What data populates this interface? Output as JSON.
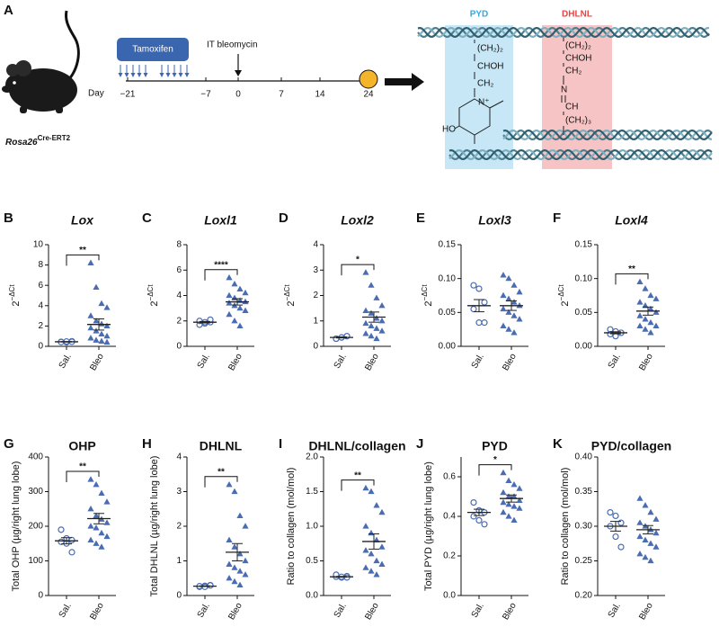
{
  "diagram": {
    "panel": "A",
    "mouse_label": "Rosa26",
    "mouse_label_superscript": "Cre-ERT2",
    "treatment": "Tamoxifen",
    "injection": "IT bleomycin",
    "timeline_label": "Day",
    "timeline_days": [
      "−21",
      "−7",
      "0",
      "7",
      "14",
      "24"
    ],
    "pyd_label": "PYD",
    "dhlnl_label": "DHLNL",
    "pyd_groups": [
      "(CH₂)₂",
      "CHOH",
      "CH₂"
    ],
    "pyd_ring_n": "N⁺",
    "pyd_hydroxyl": "HO",
    "dhlnl_groups": [
      "(CH₂)₂",
      "CHOH",
      "CH₂",
      "N",
      "CH",
      "(CH₂)₃"
    ]
  },
  "chart_data": [
    {
      "type": "dot",
      "panel": "B",
      "title": "Lox",
      "ylabel": "2",
      "ylabel_superscript": "−ΔCt",
      "categories": [
        "Sal.",
        "Bleo"
      ],
      "color": "#4a6cb3",
      "groups": [
        {
          "marker": "open-circle",
          "values": [
            0.45,
            0.4,
            0.5,
            0.42,
            0.48,
            0.45
          ],
          "mean": 0.45,
          "sem": 0.02
        },
        {
          "marker": "triangle",
          "values": [
            8.2,
            5.8,
            4.2,
            3.8,
            3.0,
            2.5,
            2.2,
            2.0,
            1.8,
            1.5,
            1.2,
            1.0,
            0.8,
            0.6,
            0.5,
            0.4
          ],
          "mean": 2.15,
          "sem": 0.55
        }
      ],
      "ylim": [
        0,
        10
      ],
      "yticks": [
        0,
        2,
        4,
        6,
        8,
        10
      ],
      "significance": "**"
    },
    {
      "type": "dot",
      "panel": "C",
      "title": "Loxl1",
      "ylabel": "2",
      "ylabel_superscript": "−ΔCt",
      "categories": [
        "Sal.",
        "Bleo"
      ],
      "color": "#4a6cb3",
      "groups": [
        {
          "marker": "open-circle",
          "values": [
            1.7,
            1.8,
            1.9,
            2.0,
            1.9,
            2.1
          ],
          "mean": 1.9,
          "sem": 0.06
        },
        {
          "marker": "triangle",
          "values": [
            5.4,
            4.9,
            4.5,
            4.2,
            4.0,
            3.8,
            3.6,
            3.5,
            3.4,
            3.2,
            3.0,
            2.8,
            2.5,
            2.0,
            1.6
          ],
          "mean": 3.5,
          "sem": 0.25
        }
      ],
      "ylim": [
        0,
        8
      ],
      "yticks": [
        0,
        2,
        4,
        6,
        8
      ],
      "significance": "****"
    },
    {
      "type": "dot",
      "panel": "D",
      "title": "Loxl2",
      "ylabel": "2",
      "ylabel_superscript": "−ΔCt",
      "categories": [
        "Sal.",
        "Bleo"
      ],
      "color": "#4a6cb3",
      "groups": [
        {
          "marker": "open-circle",
          "values": [
            0.3,
            0.35,
            0.4,
            0.3,
            0.35,
            0.4
          ],
          "mean": 0.35,
          "sem": 0.02
        },
        {
          "marker": "triangle",
          "values": [
            2.9,
            2.4,
            1.9,
            1.6,
            1.4,
            1.3,
            1.1,
            1.0,
            0.9,
            0.8,
            0.7,
            0.6,
            0.5,
            0.4,
            0.3
          ],
          "mean": 1.15,
          "sem": 0.2
        }
      ],
      "ylim": [
        0,
        4
      ],
      "yticks": [
        0,
        1,
        2,
        3,
        4
      ],
      "significance": "*"
    },
    {
      "type": "dot",
      "panel": "E",
      "title": "Loxl3",
      "ylabel": "2",
      "ylabel_superscript": "−ΔCt",
      "categories": [
        "Sal.",
        "Bleo"
      ],
      "color": "#4a6cb3",
      "groups": [
        {
          "marker": "open-circle",
          "values": [
            0.09,
            0.085,
            0.065,
            0.055,
            0.035,
            0.035
          ],
          "mean": 0.06,
          "sem": 0.009
        },
        {
          "marker": "triangle",
          "values": [
            0.105,
            0.1,
            0.09,
            0.08,
            0.075,
            0.07,
            0.065,
            0.06,
            0.055,
            0.05,
            0.045,
            0.04,
            0.03,
            0.025,
            0.02
          ],
          "mean": 0.06,
          "sem": 0.007
        }
      ],
      "ylim": [
        0,
        0.15
      ],
      "yticks": [
        {
          "value": 0,
          "label": "0.00"
        },
        {
          "value": 0.05,
          "label": "0.05"
        },
        {
          "value": 0.1,
          "label": "0.10"
        },
        {
          "value": 0.15,
          "label": "0.15"
        }
      ]
    },
    {
      "type": "dot",
      "panel": "F",
      "title": "Loxl4",
      "ylabel": "2",
      "ylabel_superscript": "−ΔCt",
      "categories": [
        "Sal.",
        "Bleo"
      ],
      "color": "#4a6cb3",
      "groups": [
        {
          "marker": "open-circle",
          "values": [
            0.025,
            0.022,
            0.02,
            0.018,
            0.015,
            0.02
          ],
          "mean": 0.02,
          "sem": 0.0015
        },
        {
          "marker": "triangle",
          "values": [
            0.095,
            0.085,
            0.075,
            0.07,
            0.065,
            0.06,
            0.055,
            0.05,
            0.045,
            0.04,
            0.035,
            0.03,
            0.03,
            0.025,
            0.02
          ],
          "mean": 0.052,
          "sem": 0.006
        }
      ],
      "ylim": [
        0,
        0.15
      ],
      "yticks": [
        {
          "value": 0,
          "label": "0.00"
        },
        {
          "value": 0.05,
          "label": "0.05"
        },
        {
          "value": 0.1,
          "label": "0.10"
        },
        {
          "value": 0.15,
          "label": "0.15"
        }
      ],
      "significance": "**"
    },
    {
      "type": "dot",
      "panel": "G",
      "title": "OHP",
      "ylabel": "Total OHP (µg/right lung lobe)",
      "categories": [
        "Sal.",
        "Bleo"
      ],
      "color": "#4a6cb3",
      "groups": [
        {
          "marker": "open-circle",
          "values": [
            190,
            165,
            160,
            155,
            150,
            125
          ],
          "mean": 158,
          "sem": 9
        },
        {
          "marker": "triangle",
          "values": [
            335,
            320,
            295,
            270,
            250,
            230,
            220,
            210,
            200,
            195,
            180,
            170,
            160,
            150,
            140
          ],
          "mean": 222,
          "sem": 15
        }
      ],
      "ylim": [
        0,
        400
      ],
      "yticks": [
        0,
        100,
        200,
        300,
        400
      ],
      "significance": "**"
    },
    {
      "type": "dot",
      "panel": "H",
      "title": "DHLNL",
      "ylabel": "Total DHLNL (µg/right lung lobe)",
      "categories": [
        "Sal.",
        "Bleo"
      ],
      "color": "#4a6cb3",
      "groups": [
        {
          "marker": "open-circle",
          "values": [
            0.25,
            0.28,
            0.3,
            0.27,
            0.25,
            0.29
          ],
          "mean": 0.27,
          "sem": 0.01
        },
        {
          "marker": "triangle",
          "values": [
            3.2,
            3.0,
            2.3,
            2.0,
            1.6,
            1.4,
            1.2,
            1.0,
            0.9,
            0.8,
            0.7,
            0.6,
            0.5,
            0.4,
            0.3
          ],
          "mean": 1.25,
          "sem": 0.25
        }
      ],
      "ylim": [
        0,
        4
      ],
      "yticks": [
        0,
        1,
        2,
        3,
        4
      ],
      "significance": "**"
    },
    {
      "type": "dot",
      "panel": "I",
      "title": "DHLNL/collagen",
      "ylabel": "Ratio to collagen (mol/mol)",
      "categories": [
        "Sal.",
        "Bleo"
      ],
      "color": "#4a6cb3",
      "groups": [
        {
          "marker": "open-circle",
          "values": [
            0.27,
            0.26,
            0.28,
            0.3,
            0.27,
            0.26
          ],
          "mean": 0.27,
          "sem": 0.006
        },
        {
          "marker": "triangle",
          "values": [
            1.55,
            1.5,
            1.3,
            1.2,
            1.0,
            0.9,
            0.8,
            0.7,
            0.65,
            0.6,
            0.5,
            0.45,
            0.4,
            0.35,
            0.3
          ],
          "mean": 0.78,
          "sem": 0.11
        }
      ],
      "ylim": [
        0,
        2
      ],
      "yticks": [
        {
          "value": 0,
          "label": "0.0"
        },
        0.5,
        {
          "value": 1,
          "label": "1.0"
        },
        1.5,
        {
          "value": 2,
          "label": "2.0"
        }
      ],
      "significance": "**"
    },
    {
      "type": "dot",
      "panel": "J",
      "title": "PYD",
      "ylabel": "Total PYD (µg/right lung lobe)",
      "categories": [
        "Sal.",
        "Bleo"
      ],
      "color": "#4a6cb3",
      "groups": [
        {
          "marker": "open-circle",
          "values": [
            0.47,
            0.43,
            0.42,
            0.4,
            0.38,
            0.36
          ],
          "mean": 0.42,
          "sem": 0.016
        },
        {
          "marker": "triangle",
          "values": [
            0.62,
            0.58,
            0.56,
            0.54,
            0.52,
            0.5,
            0.5,
            0.48,
            0.47,
            0.46,
            0.45,
            0.44,
            0.42,
            0.4,
            0.38
          ],
          "mean": 0.49,
          "sem": 0.018
        }
      ],
      "ylim": [
        0,
        0.7
      ],
      "yticks": [
        {
          "value": 0,
          "label": "0.0"
        },
        0.2,
        0.4,
        0.6
      ],
      "significance": "*"
    },
    {
      "type": "dot",
      "panel": "K",
      "title": "PYD/collagen",
      "ylabel": "Ratio to collagen (mol/mol)",
      "categories": [
        "Sal.",
        "Bleo"
      ],
      "color": "#4a6cb3",
      "groups": [
        {
          "marker": "open-circle",
          "values": [
            0.32,
            0.315,
            0.305,
            0.3,
            0.285,
            0.27
          ],
          "mean": 0.3,
          "sem": 0.007
        },
        {
          "marker": "triangle",
          "values": [
            0.34,
            0.33,
            0.32,
            0.31,
            0.305,
            0.3,
            0.295,
            0.29,
            0.285,
            0.28,
            0.275,
            0.27,
            0.26,
            0.255,
            0.25
          ],
          "mean": 0.295,
          "sem": 0.006
        }
      ],
      "ylim": [
        0.2,
        0.4
      ],
      "yticks": [
        {
          "value": 0.2,
          "label": "0.20"
        },
        {
          "value": 0.25,
          "label": "0.25"
        },
        {
          "value": 0.3,
          "label": "0.30"
        },
        {
          "value": 0.35,
          "label": "0.35"
        },
        {
          "value": 0.4,
          "label": "0.40"
        }
      ]
    }
  ]
}
